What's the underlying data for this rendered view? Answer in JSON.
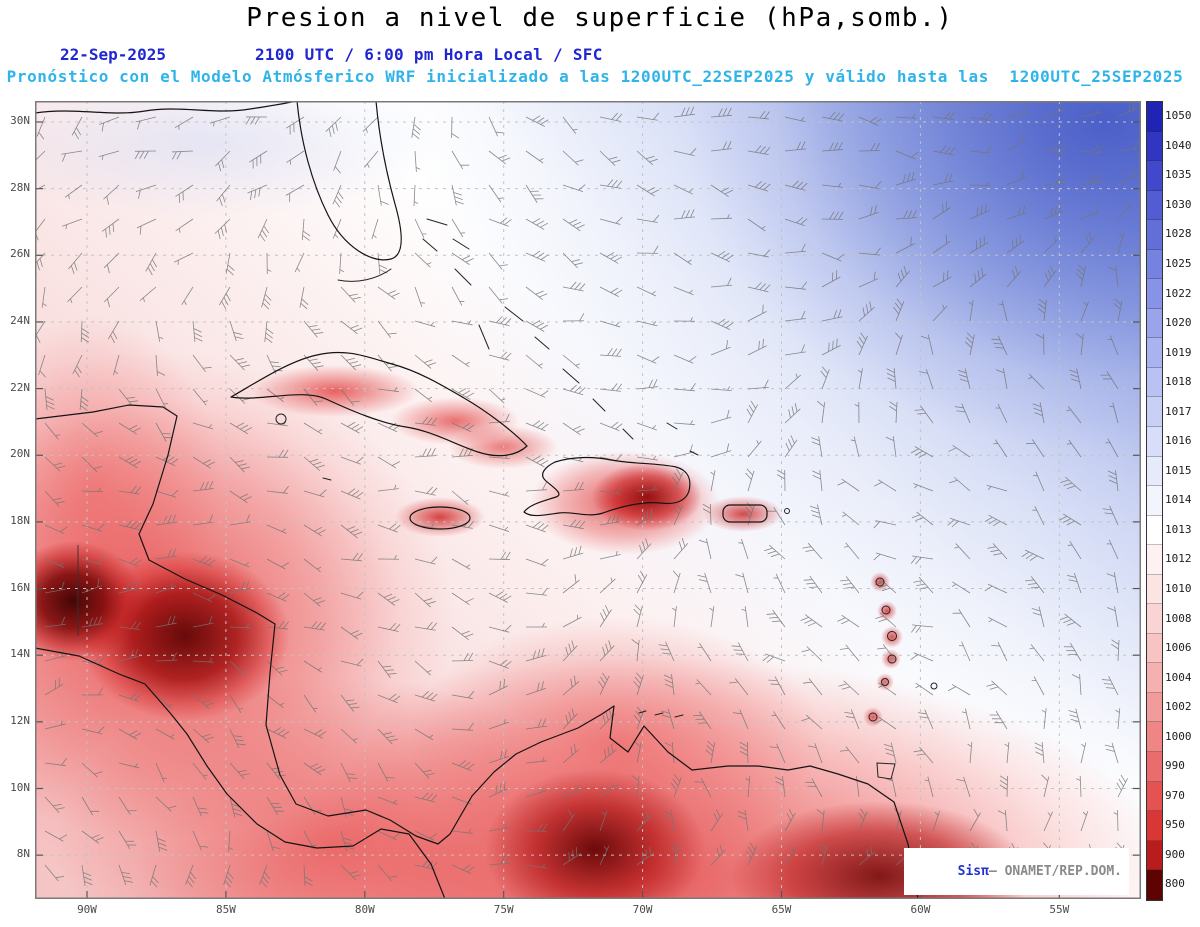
{
  "header": {
    "title": "Presion a nivel de superficie (hPa,somb.)",
    "date": "22-Sep-2025",
    "time": "2100 UTC / 6:00 pm Hora Local / SFC",
    "forecast": "Pronóstico con el Modelo Atmósferico WRF inicializado a las 1200UTC_22SEP2025 y válido hasta las  1200UTC_25SEP2025"
  },
  "watermark": {
    "brand": "Sisπ",
    "org": "– ONAMET/REP.DOM."
  },
  "chart_data": {
    "type": "heatmap",
    "title": "Presion a nivel de superficie (hPa,somb.)",
    "variable": "surface pressure (shaded) with wind barbs",
    "units": "hPa",
    "model": "WRF",
    "initialized": "1200UTC_22SEP2025",
    "valid_until": "1200UTC_25SEP2025",
    "valid_at": "22-Sep-2025 2100 UTC / 6:00 pm Hora Local / SFC",
    "level": "SFC",
    "lat_ticks": [
      "30N",
      "28N",
      "26N",
      "24N",
      "22N",
      "20N",
      "18N",
      "16N",
      "14N",
      "12N",
      "10N",
      "8N"
    ],
    "lon_ticks": [
      "90W",
      "85W",
      "80W",
      "75W",
      "70W",
      "65W",
      "60W",
      "55W"
    ],
    "grid": "dashed graticule every 2 deg lat / 5 deg lon",
    "legend_position": "right",
    "colorbar": {
      "levels": [
        1050,
        1040,
        1035,
        1030,
        1028,
        1025,
        1022,
        1020,
        1019,
        1018,
        1017,
        1016,
        1015,
        1014,
        1013,
        1012,
        1010,
        1008,
        1006,
        1004,
        1002,
        1000,
        990,
        970,
        950,
        900,
        800
      ],
      "colors": [
        "#1f24b4",
        "#3136c2",
        "#4148cb",
        "#525cd3",
        "#636fd9",
        "#7582e0",
        "#8793e6",
        "#99a4eb",
        "#a9b3ef",
        "#b9c2f3",
        "#c9d0f6",
        "#d8def9",
        "#e6eafb",
        "#f3f5fd",
        "#ffffff",
        "#fdf1f1",
        "#fce4e4",
        "#fad4d4",
        "#f8c3c3",
        "#f5b0b0",
        "#f29b9b",
        "#ef8585",
        "#ea6c6c",
        "#e45252",
        "#d93636",
        "#b91c1c",
        "#5e0202"
      ]
    },
    "overlays": [
      "wind barbs (gray)",
      "coastlines (black)",
      "dashed graticule"
    ],
    "field_readings": [
      {
        "region": "NE Atlantic (upper right)",
        "pressure_hPa": "1016-1030 high (blue shading)"
      },
      {
        "region": "Atlantic band 20-26N",
        "pressure_hPa": "1013-1015 (white)"
      },
      {
        "region": "Caribbean Sea",
        "pressure_hPa": "1008-1012 (light pink)"
      },
      {
        "region": "Cuba / Hispaniola / Jamaica / Puerto Rico",
        "pressure_hPa": "1000-1006 local minima (red)"
      },
      {
        "region": "Central America (Honduras-Nicaragua)",
        "pressure_hPa": "below 950 shading (dark red)"
      },
      {
        "region": "Colombia / Venezuela coast",
        "pressure_hPa": "950-1000 (red)"
      }
    ]
  }
}
